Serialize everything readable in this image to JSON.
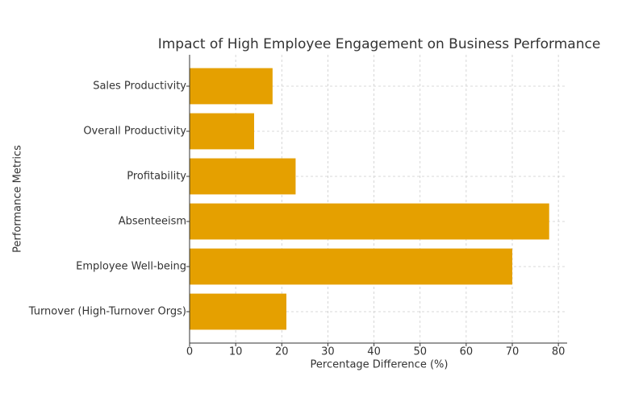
{
  "chart_data": {
    "type": "barh",
    "title": "Impact of High Employee Engagement on Business Performance",
    "xlabel": "Percentage Difference (%)",
    "ylabel": "Performance Metrics",
    "categories": [
      "Sales Productivity",
      "Overall Productivity",
      "Profitability",
      "Absenteeism",
      "Employee Well-being",
      "Turnover (High-Turnover Orgs)"
    ],
    "values": [
      18,
      14,
      23,
      78,
      70,
      21
    ],
    "color": "#e5a000",
    "xlim": [
      0,
      81.9
    ],
    "xticks": [
      0,
      10,
      20,
      30,
      40,
      50,
      60,
      70,
      80
    ],
    "grid": true
  }
}
